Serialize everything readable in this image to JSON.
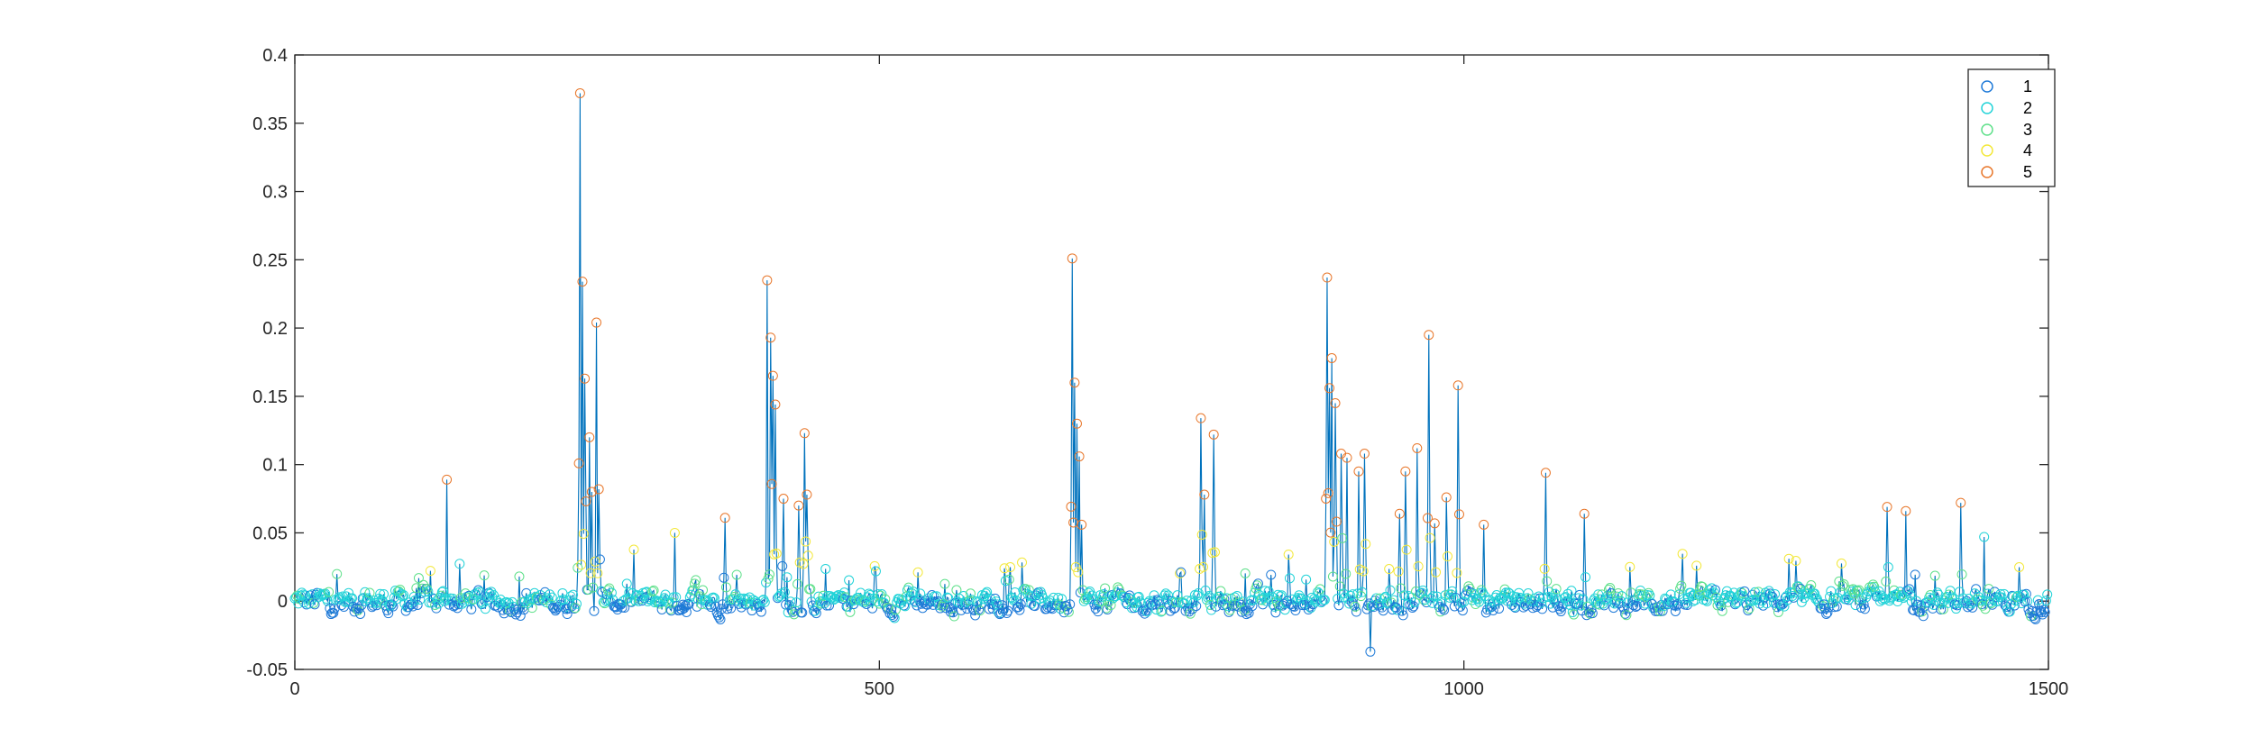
{
  "chart_data": {
    "type": "scatter",
    "title": "",
    "xlabel": "",
    "ylabel": "",
    "xlim": [
      0,
      1500
    ],
    "ylim": [
      -0.05,
      0.4
    ],
    "x_ticks": [
      0,
      500,
      1000,
      1500
    ],
    "y_ticks": [
      -0.05,
      0,
      0.05,
      0.1,
      0.15,
      0.2,
      0.25,
      0.3,
      0.35,
      0.4
    ],
    "x_tick_labels": [
      "0",
      "500",
      "1000",
      "1500"
    ],
    "y_tick_labels": [
      "-0.05",
      "0",
      "0.05",
      "0.1",
      "0.15",
      "0.2",
      "0.25",
      "0.3",
      "0.35",
      "0.4"
    ],
    "grid": false,
    "legend_position": "top-right",
    "line_color": "#0072bd",
    "series": [
      {
        "name": "1",
        "color": "#1f7ad8"
      },
      {
        "name": "2",
        "color": "#22d3d8"
      },
      {
        "name": "3",
        "color": "#5ee08a"
      },
      {
        "name": "4",
        "color": "#f3e83a"
      },
      {
        "name": "5",
        "color": "#e8772b"
      }
    ],
    "baseline_level": 0.0,
    "baseline_noise": 0.008,
    "n_points": 1500,
    "peaks": [
      [
        130,
        0.089
      ],
      [
        244,
        0.372
      ],
      [
        246,
        0.234
      ],
      [
        248,
        0.163
      ],
      [
        252,
        0.12
      ],
      [
        254,
        0.08
      ],
      [
        258,
        0.204
      ],
      [
        260,
        0.082
      ],
      [
        325,
        0.05
      ],
      [
        368,
        0.061
      ],
      [
        404,
        0.235
      ],
      [
        407,
        0.193
      ],
      [
        409,
        0.165
      ],
      [
        411,
        0.144
      ],
      [
        418,
        0.075
      ],
      [
        431,
        0.07
      ],
      [
        436,
        0.123
      ],
      [
        438,
        0.078
      ],
      [
        665,
        0.251
      ],
      [
        667,
        0.16
      ],
      [
        669,
        0.13
      ],
      [
        671,
        0.106
      ],
      [
        673,
        0.056
      ],
      [
        775,
        0.134
      ],
      [
        778,
        0.078
      ],
      [
        786,
        0.122
      ],
      [
        883,
        0.237
      ],
      [
        885,
        0.156
      ],
      [
        887,
        0.178
      ],
      [
        890,
        0.145
      ],
      [
        895,
        0.108
      ],
      [
        900,
        0.105
      ],
      [
        910,
        0.095
      ],
      [
        915,
        0.108
      ],
      [
        920,
        -0.037
      ],
      [
        945,
        0.064
      ],
      [
        950,
        0.095
      ],
      [
        960,
        0.112
      ],
      [
        970,
        0.195
      ],
      [
        975,
        0.057
      ],
      [
        985,
        0.076
      ],
      [
        995,
        0.158
      ],
      [
        1017,
        0.056
      ],
      [
        1070,
        0.094
      ],
      [
        1103,
        0.064
      ],
      [
        1362,
        0.069
      ],
      [
        1378,
        0.066
      ],
      [
        1425,
        0.072
      ],
      [
        1445,
        0.047
      ]
    ]
  },
  "legend": {
    "entries": [
      "1",
      "2",
      "3",
      "4",
      "5"
    ]
  }
}
